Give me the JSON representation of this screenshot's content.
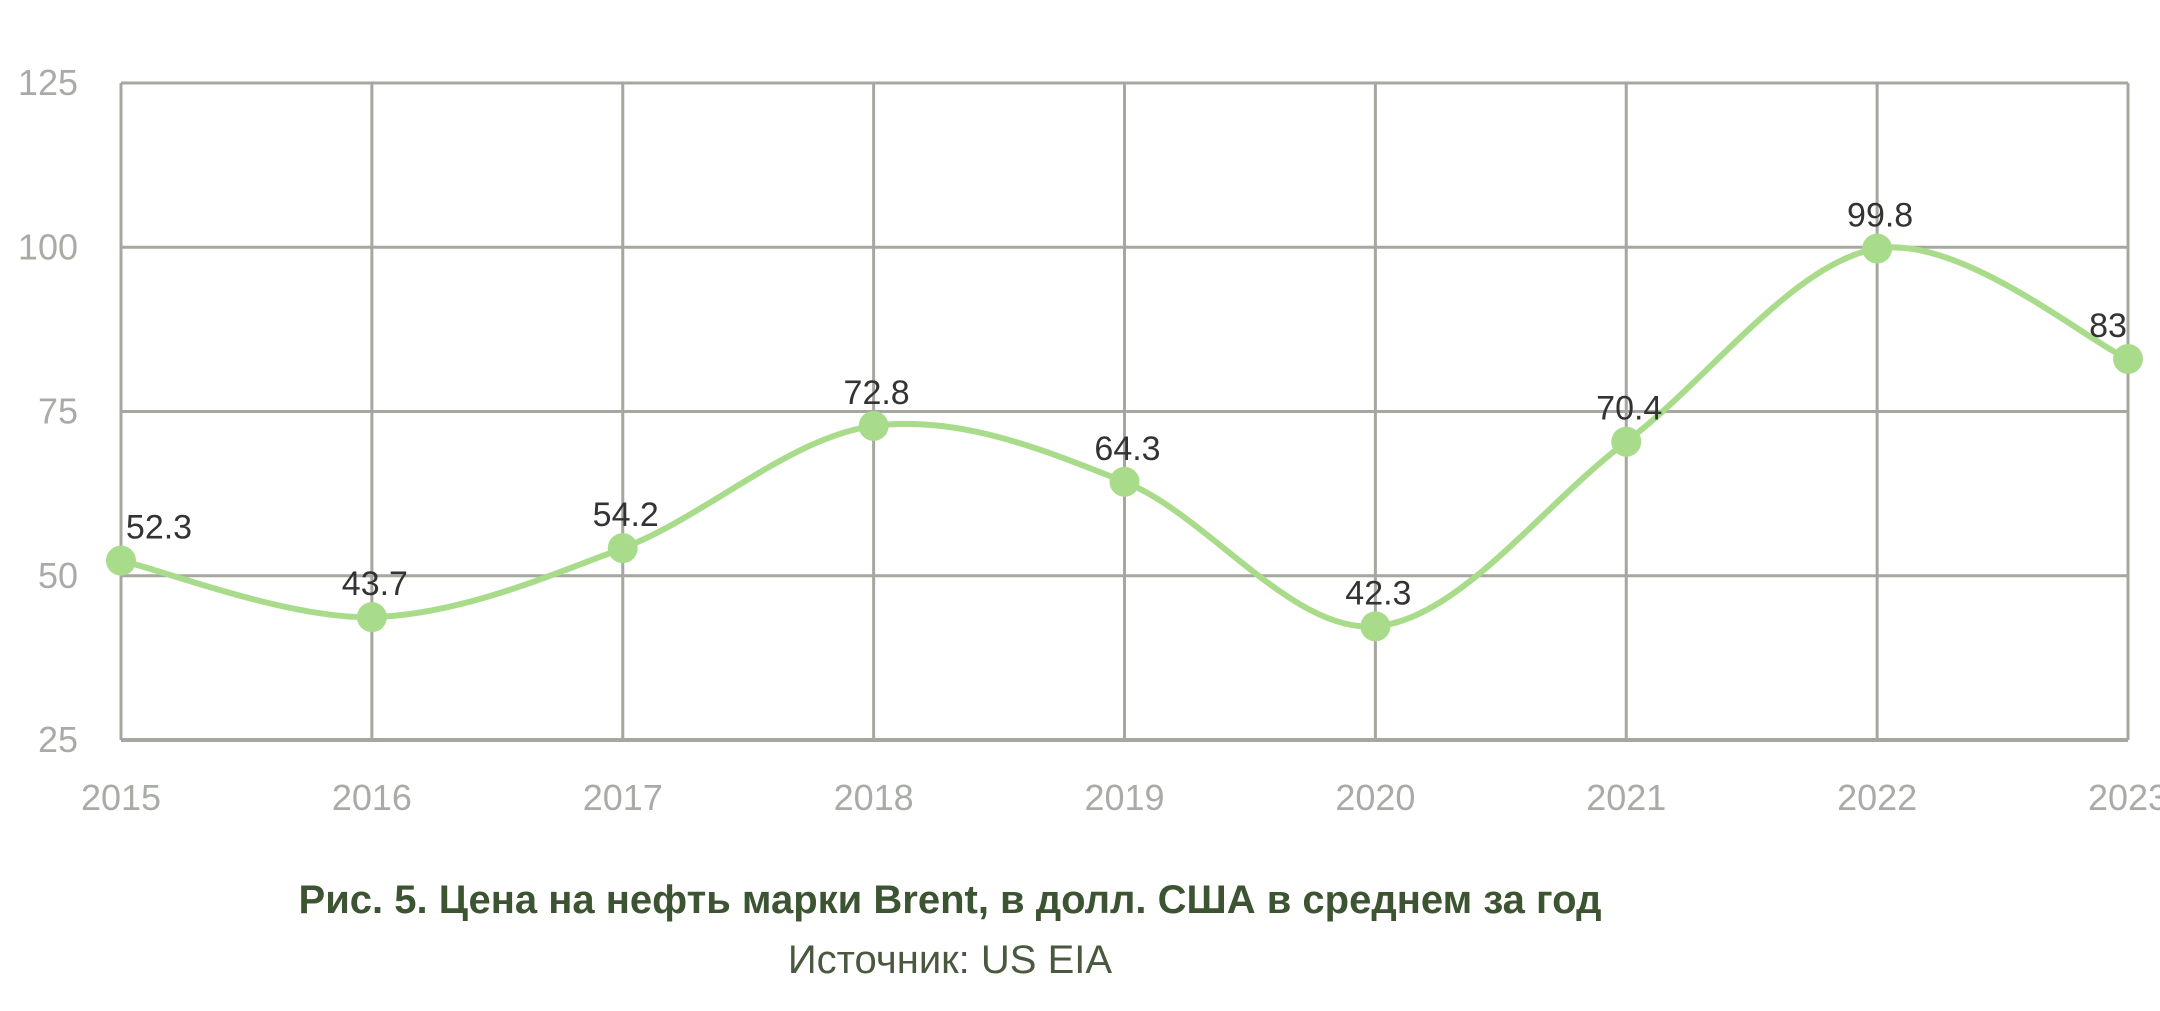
{
  "chart_data": {
    "type": "line",
    "categories": [
      "2015",
      "2016",
      "2017",
      "2018",
      "2019",
      "2020",
      "2021",
      "2022",
      "2023"
    ],
    "series": [
      {
        "values": [
          52.3,
          43.7,
          54.2,
          72.8,
          64.3,
          42.3,
          70.4,
          99.8,
          83
        ],
        "data_labels": [
          "52.3",
          "43.7",
          "54.2",
          "72.8",
          "64.3",
          "42.3",
          "70.4",
          "99.8",
          "83"
        ],
        "color": "#a9dc8a"
      }
    ],
    "y_ticks": [
      "25",
      "50",
      "75",
      "100",
      "125"
    ],
    "ylim": [
      25,
      125
    ],
    "grid": true,
    "legend": "none",
    "title": "Рис. 5. Цена на нефть марки Brent, в долл. США в среднем за год",
    "source": "Источник: US EIA",
    "xlabel": "",
    "ylabel": ""
  },
  "colors": {
    "grid": "#a4a89f",
    "line": "#a9dc8a",
    "tick_text": "#a9aca6",
    "label_text": "#333333",
    "title_text": "#3c5431"
  }
}
